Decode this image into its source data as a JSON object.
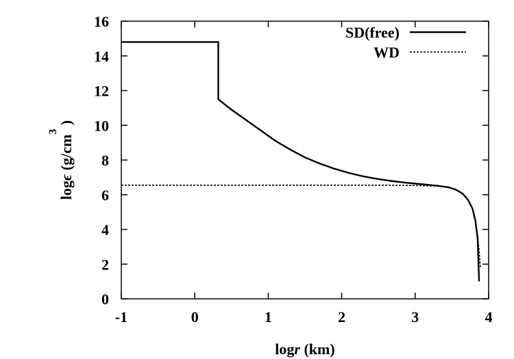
{
  "chart_data": {
    "type": "line",
    "xlabel": "log r (km)",
    "xlabel_parts": {
      "fn": "log",
      "var": "r",
      "unit": " (km)"
    },
    "ylabel": "logϵ (g/cm^3)",
    "ylabel_parts": {
      "fn": "log",
      "var": "ϵ",
      "unit": " (g/cm",
      "sup": "3",
      "close": " )"
    },
    "xlim": [
      -1,
      4
    ],
    "ylim": [
      0,
      16
    ],
    "x_ticks": [
      -1,
      0,
      1,
      2,
      3,
      4
    ],
    "y_ticks": [
      0,
      2,
      4,
      6,
      8,
      10,
      12,
      14,
      16
    ],
    "grid": false,
    "legend_position": "top-right",
    "series": [
      {
        "name": "SD(free)",
        "style": "solid",
        "color": "#000000",
        "x": [
          -1.0,
          0.32,
          0.32,
          0.35,
          0.5,
          0.7,
          0.9,
          1.1,
          1.3,
          1.5,
          1.7,
          1.9,
          2.1,
          2.3,
          2.5,
          2.7,
          2.9,
          3.1,
          3.3,
          3.45,
          3.55,
          3.65,
          3.72,
          3.78,
          3.82,
          3.85,
          3.86,
          3.87
        ],
        "y": [
          14.8,
          14.8,
          11.5,
          11.4,
          10.9,
          10.3,
          9.7,
          9.1,
          8.6,
          8.15,
          7.8,
          7.5,
          7.25,
          7.05,
          6.9,
          6.78,
          6.68,
          6.6,
          6.52,
          6.43,
          6.3,
          6.05,
          5.7,
          5.2,
          4.5,
          3.5,
          2.2,
          1.0
        ]
      },
      {
        "name": "WD",
        "style": "dashed",
        "color": "#000000",
        "x": [
          -1.0,
          0.0,
          1.0,
          2.0,
          2.6,
          3.0,
          3.3,
          3.45,
          3.55,
          3.65,
          3.72,
          3.78,
          3.82,
          3.85,
          3.87,
          3.88,
          3.89
        ],
        "y": [
          6.55,
          6.55,
          6.55,
          6.55,
          6.55,
          6.53,
          6.5,
          6.42,
          6.3,
          6.05,
          5.7,
          5.2,
          4.5,
          3.6,
          2.8,
          2.2,
          1.8
        ]
      }
    ]
  }
}
